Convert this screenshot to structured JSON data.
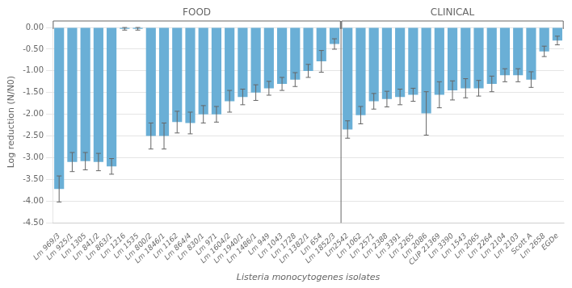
{
  "chart_data": {
    "type": "bar",
    "categories": [
      "Lm 969/3",
      "Lm 925/1",
      "Lm 1305",
      "Lm 841/2",
      "Lm 863/1",
      "Lm 1216",
      "Lm 1535",
      "Lm 800/2",
      "Lm 1846/1",
      "Lm 1162",
      "Lm 864/4",
      "Lm 830/1",
      "Lm 971",
      "Lm 1604/2",
      "Lm 1940/1",
      "Lm 1486/1",
      "Lm 949",
      "Lm 1043",
      "Lm 1728",
      "Lm 1382/1",
      "Lm 654",
      "Lm 1852/3",
      "Lm2542",
      "Lm 1062",
      "Lm 2571",
      "Lm 2388",
      "Lm 3391",
      "Lm 2265",
      "Lm 2086",
      "CLIP 21369",
      "Lm 3390",
      "Lm 1543",
      "Lm 2065",
      "Lm 2264",
      "Lm 2104",
      "Lm 2103",
      "Scott A",
      "Lm 2658",
      "EGDe"
    ],
    "values": [
      -3.72,
      -3.1,
      -3.08,
      -3.1,
      -3.2,
      -0.03,
      -0.03,
      -2.5,
      -2.5,
      -2.18,
      -2.2,
      -2.0,
      -2.0,
      -1.7,
      -1.6,
      -1.5,
      -1.4,
      -1.3,
      -1.2,
      -1.0,
      -0.78,
      -0.38,
      -2.35,
      -2.02,
      -1.7,
      -1.65,
      -1.6,
      -1.55,
      -1.98,
      -1.55,
      -1.45,
      -1.4,
      -1.4,
      -1.3,
      -1.1,
      -1.1,
      -1.2,
      -0.55,
      -0.3
    ],
    "errors": [
      0.3,
      0.22,
      0.2,
      0.2,
      0.18,
      0.03,
      0.03,
      0.3,
      0.3,
      0.25,
      0.25,
      0.2,
      0.18,
      0.25,
      0.18,
      0.18,
      0.16,
      0.15,
      0.16,
      0.15,
      0.25,
      0.12,
      0.2,
      0.2,
      0.18,
      0.18,
      0.18,
      0.15,
      0.5,
      0.3,
      0.22,
      0.22,
      0.18,
      0.18,
      0.15,
      0.15,
      0.18,
      0.12,
      0.1
    ],
    "color": "#6aafd6",
    "xlabel": "Listeria monocytogenes isolates",
    "ylabel": "Log reduction (N/N0)",
    "ylim": [
      -4.5,
      0.15
    ],
    "yticks": [
      {
        "value": 0.0,
        "label": "0.00"
      },
      {
        "value": -0.5,
        "label": "-0.50"
      },
      {
        "value": -1.0,
        "label": "-1.00"
      },
      {
        "value": -1.5,
        "label": "-1.50"
      },
      {
        "value": -2.0,
        "label": "-2.00"
      },
      {
        "value": -2.5,
        "label": "-2.50"
      },
      {
        "value": -3.0,
        "label": "-3.00"
      },
      {
        "value": -3.5,
        "label": "-3.50"
      },
      {
        "value": -4.0,
        "label": "-4.00"
      },
      {
        "value": -4.5,
        "label": "-4.50"
      }
    ],
    "grid": true,
    "groups": [
      {
        "label": "FOOD",
        "first": "Lm 969/3",
        "last": "Lm 1852/3"
      },
      {
        "label": "CLINICAL",
        "first": "Lm2542",
        "last": "EGDe"
      }
    ]
  }
}
